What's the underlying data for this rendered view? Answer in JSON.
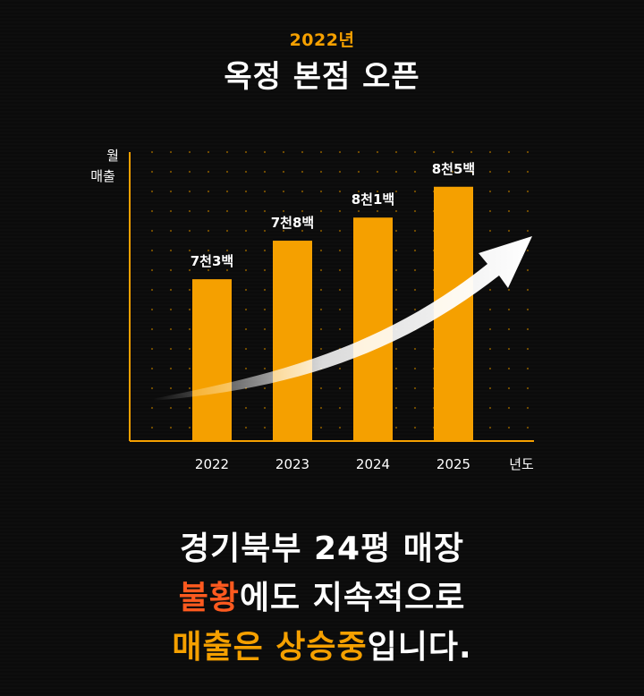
{
  "header": {
    "year_tag": "2022년",
    "title": "옥정 본점 오픈"
  },
  "chart_data": {
    "type": "bar",
    "categories": [
      "2022",
      "2023",
      "2024",
      "2025"
    ],
    "values": [
      7300,
      7800,
      8100,
      8500
    ],
    "data_labels": [
      "7천3백",
      "7천8백",
      "8천1백",
      "8천5백"
    ],
    "ylabel_line1": "월",
    "ylabel_line2": "매출",
    "xlabel": "년도",
    "ylim": [
      5200,
      8950
    ],
    "grid": "dotted",
    "trend_arrow": true,
    "colors": {
      "bar": "#f5a000",
      "axis": "#f5a000",
      "grid": "#7a5200",
      "text": "#ffffff"
    }
  },
  "headline": {
    "line1": "경기북부 24평 매장",
    "line2_accent": "불황",
    "line2_rest": "에도 지속적으로",
    "line3_accent": "매출은 상승중",
    "line3_rest": "입니다."
  },
  "colors": {
    "background": "#0b0b0b",
    "accent_orange": "#f5a000",
    "accent_red": "#ff5a1f"
  }
}
